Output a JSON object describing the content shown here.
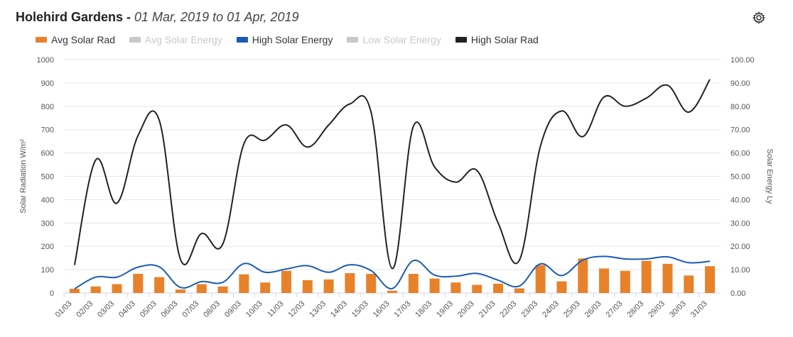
{
  "header": {
    "station": "Holehird Gardens",
    "separator": " - ",
    "range": "01 Mar, 2019 to 01 Apr, 2019"
  },
  "toolbar": {
    "settings_icon": "gear-icon"
  },
  "legend": [
    {
      "label": "Avg Solar Rad",
      "color": "#e8822a",
      "active": true
    },
    {
      "label": "Avg Solar Energy",
      "color": "#c8c8c8",
      "active": false
    },
    {
      "label": "High Solar Energy",
      "color": "#1a5bb5",
      "active": true
    },
    {
      "label": "Low Solar Energy",
      "color": "#c8c8c8",
      "active": false
    },
    {
      "label": "High Solar Rad",
      "color": "#222222",
      "active": true
    }
  ],
  "chart_data": {
    "type": "bar+line",
    "categories": [
      "01/03",
      "02/03",
      "03/03",
      "04/03",
      "05/03",
      "06/03",
      "07/03",
      "08/03",
      "09/03",
      "10/03",
      "11/03",
      "12/03",
      "13/03",
      "14/03",
      "15/03",
      "16/03",
      "17/03",
      "18/03",
      "19/03",
      "20/03",
      "21/03",
      "22/03",
      "23/03",
      "24/03",
      "25/03",
      "26/03",
      "27/03",
      "28/03",
      "29/03",
      "30/03",
      "31/03"
    ],
    "y_left": {
      "label": "Solar Radiation W/m²",
      "min": 0,
      "max": 1000,
      "ticks": [
        "0",
        "100",
        "200",
        "300",
        "400",
        "500",
        "600",
        "700",
        "800",
        "900",
        "1000"
      ]
    },
    "y_right": {
      "label": "Solar Energy Ly",
      "min": 0,
      "max": 100,
      "ticks": [
        "0.00",
        "10.00",
        "20.00",
        "30.00",
        "40.00",
        "50.00",
        "60.00",
        "70.00",
        "80.00",
        "90.00",
        "100.00"
      ]
    },
    "grid": true,
    "series": [
      {
        "name": "Avg Solar Rad",
        "type": "bar",
        "axis": "left",
        "color": "#e8822a",
        "values": [
          18,
          28,
          38,
          82,
          68,
          15,
          38,
          28,
          80,
          45,
          95,
          55,
          58,
          85,
          82,
          10,
          82,
          62,
          45,
          35,
          40,
          20,
          120,
          50,
          148,
          105,
          95,
          138,
          125,
          75,
          115
        ]
      },
      {
        "name": "High Solar Energy",
        "type": "line",
        "axis": "right",
        "color": "#1a5bb5",
        "values": [
          1.8,
          6.8,
          6.8,
          11.1,
          11.2,
          2.4,
          4.9,
          4.6,
          12.6,
          8.9,
          10.3,
          11.7,
          8.9,
          12.1,
          9.6,
          1.9,
          13.9,
          7.7,
          7.2,
          8.4,
          5.5,
          3.0,
          12.5,
          7.5,
          14.1,
          15.7,
          14.6,
          14.6,
          15.5,
          13.0,
          13.6
        ]
      },
      {
        "name": "High Solar Rad",
        "type": "line",
        "axis": "left",
        "color": "#222222",
        "values": [
          120,
          570,
          385,
          675,
          740,
          145,
          255,
          210,
          640,
          655,
          720,
          625,
          720,
          810,
          775,
          105,
          715,
          540,
          475,
          525,
          300,
          140,
          630,
          780,
          670,
          840,
          800,
          835,
          890,
          775,
          915
        ]
      }
    ]
  }
}
